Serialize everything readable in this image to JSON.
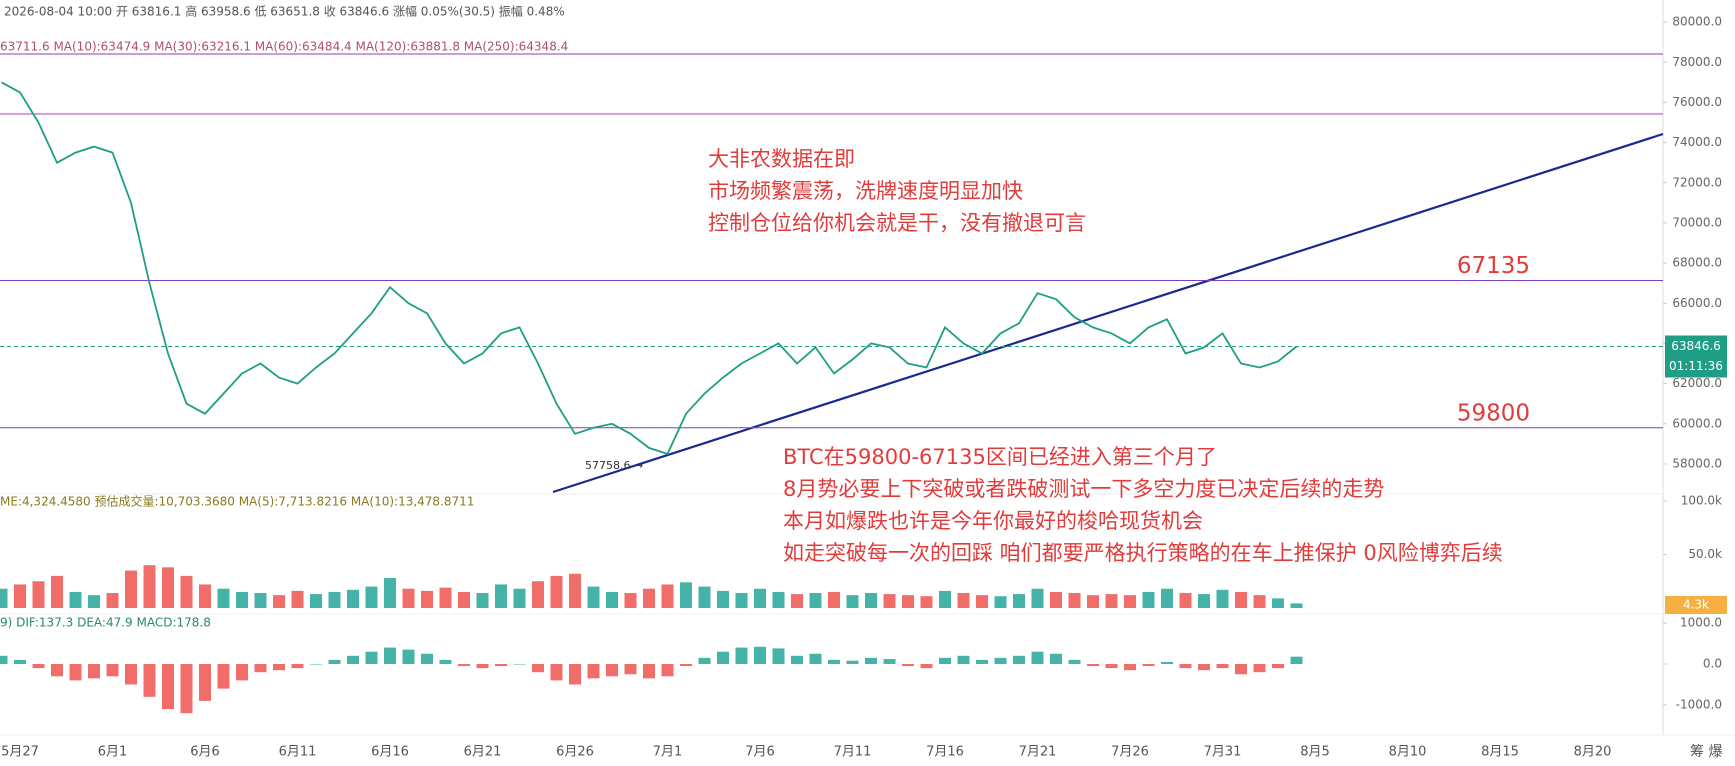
{
  "chart_data": [
    {
      "type": "line",
      "header": "2026-08-04 10:00 开 63816.1 高 63958.6 低 63651.8 收 63846.6 涨幅 0.05%(30.5) 振幅 0.48%",
      "ma_legend": "63711.6  MA(10):63474.9  MA(30):63216.1  MA(60):63484.4  MA(120):63881.8  MA(250):64348.4",
      "categories": [
        null,
        "5月27",
        null,
        null,
        null,
        null,
        "6月1",
        null,
        null,
        null,
        null,
        "6月6",
        null,
        null,
        null,
        null,
        "6月11",
        null,
        null,
        null,
        null,
        "6月16",
        null,
        null,
        null,
        null,
        "6月21",
        null,
        null,
        null,
        null,
        "6月26",
        null,
        null,
        null,
        null,
        "7月1",
        null,
        null,
        null,
        null,
        "7月6",
        null,
        null,
        null,
        null,
        "7月11",
        null,
        null,
        null,
        null,
        "7月16",
        null,
        null,
        null,
        null,
        "7月21",
        null,
        null,
        null,
        null,
        "7月26",
        null,
        null,
        null,
        null,
        "7月31",
        null,
        null,
        null,
        null,
        "8月5",
        null,
        null,
        null,
        null,
        "8月10",
        null,
        null,
        null,
        null,
        "8月15",
        null,
        null,
        null,
        null,
        "8月20",
        null,
        null
      ],
      "values": [
        77000,
        76500,
        75000,
        73000,
        73500,
        73800,
        73500,
        71000,
        67000,
        63500,
        61000,
        60500,
        61500,
        62500,
        63000,
        62300,
        62000,
        62800,
        63500,
        64500,
        65500,
        66800,
        66000,
        65500,
        64000,
        63000,
        63500,
        64500,
        64800,
        63000,
        61000,
        59500,
        59800,
        60000,
        59500,
        58800,
        58500,
        60500,
        61500,
        62300,
        63000,
        63500,
        64000,
        63000,
        63800,
        62500,
        63200,
        64000,
        63800,
        63000,
        62800,
        64800,
        64000,
        63500,
        64500,
        65000,
        66500,
        66200,
        65300,
        64800,
        64500,
        64000,
        64800,
        65200,
        63500,
        63800,
        64500,
        63000,
        62800,
        63100,
        63846.6,
        null,
        null,
        null,
        null,
        null,
        null,
        null,
        null,
        null,
        null,
        null,
        null,
        null,
        null,
        null,
        null,
        null,
        null
      ],
      "color": "#1f9e85",
      "ylim": [
        57000,
        81000
      ],
      "yticks": [
        {
          "value": 58000,
          "label": "58000.0"
        },
        {
          "value": 60000,
          "label": "60000.0"
        },
        {
          "value": 62000,
          "label": "62000.0"
        },
        {
          "value": 64000,
          "label": "64000.0"
        },
        {
          "value": 66000,
          "label": "66000.0"
        },
        {
          "value": 68000,
          "label": "68000.0"
        },
        {
          "value": 70000,
          "label": "70000.0"
        },
        {
          "value": 72000,
          "label": "72000.0"
        },
        {
          "value": 74000,
          "label": "74000.0"
        },
        {
          "value": 76000,
          "label": "76000.0"
        },
        {
          "value": 78000,
          "label": "78000.0"
        },
        {
          "value": 80000,
          "label": "80000.0"
        }
      ],
      "levels": [
        {
          "value": 67135,
          "label": "67135"
        },
        {
          "value": 59800,
          "label": "59800"
        }
      ],
      "last_price": {
        "value": 63846.6,
        "label": "63846.6"
      },
      "countdown": "01:11:36",
      "low_label": "57758.6 →",
      "notes_top": [
        "大非农数据在即",
        "市场频繁震荡，洗牌速度明显加快",
        "控制仓位给你机会就是干，没有撤退可言"
      ],
      "notes_bottom": [
        "BTC在59800-67135区间已经进入第三个月了",
        "8月势必要上下突破或者跌破测试一下多空力度已决定后续的走势",
        "本月如爆跌也许是今年你最好的梭哈现货机会",
        "如走突破每一次的回踩 咱们都要严格执行策略的在车上推保护 0风险博弈后续"
      ]
    },
    {
      "type": "bar",
      "header": "ME:4,324.4580  预估成交量:10,703.3680  MA(5):7,713.8216  MA(10):13,478.8711",
      "values": [
        18000,
        22000,
        25000,
        30000,
        15000,
        12000,
        14000,
        35000,
        40000,
        38000,
        30000,
        22000,
        18000,
        15000,
        14000,
        12000,
        16000,
        13000,
        15000,
        17000,
        20000,
        28000,
        18000,
        16000,
        19000,
        15000,
        14000,
        22000,
        18000,
        25000,
        30000,
        32000,
        20000,
        15000,
        14000,
        18000,
        22000,
        24000,
        20000,
        16000,
        14000,
        18000,
        15000,
        13000,
        14000,
        15000,
        12000,
        14000,
        13000,
        12000,
        11000,
        16000,
        14000,
        12000,
        11000,
        13000,
        18000,
        15000,
        14000,
        12000,
        13000,
        12000,
        15000,
        18000,
        14000,
        13000,
        17000,
        15000,
        12000,
        9000,
        4300,
        null,
        null,
        null,
        null,
        null,
        null,
        null,
        null,
        null,
        null,
        null,
        null,
        null,
        null,
        null,
        null,
        null,
        null
      ],
      "value_labels_last": "4.3k",
      "up_color": "#26a69a",
      "down_color": "#ef5350",
      "ylim": [
        0,
        100000
      ],
      "yticks": [
        {
          "value": 50000,
          "label": "50.0k"
        },
        {
          "value": 100000,
          "label": "100.0k"
        }
      ]
    },
    {
      "type": "bar",
      "header": "9)  DIF:137.3  DEA:47.9  MACD:178.8",
      "values": [
        200,
        100,
        -100,
        -300,
        -400,
        -350,
        -300,
        -500,
        -800,
        -1100,
        -1200,
        -900,
        -600,
        -400,
        -200,
        -150,
        -100,
        0,
        100,
        200,
        300,
        400,
        350,
        250,
        100,
        -50,
        -100,
        -50,
        0,
        -200,
        -400,
        -500,
        -350,
        -300,
        -250,
        -350,
        -300,
        -50,
        150,
        300,
        400,
        420,
        380,
        200,
        250,
        100,
        80,
        150,
        120,
        -50,
        -100,
        150,
        200,
        100,
        150,
        200,
        300,
        250,
        100,
        -50,
        -100,
        -150,
        -50,
        50,
        -100,
        -150,
        -100,
        -250,
        -200,
        -100,
        178.8,
        null,
        null,
        null,
        null,
        null,
        null,
        null,
        null,
        null,
        null,
        null,
        null,
        null,
        null,
        null,
        null,
        null,
        null
      ],
      "up_color": "#26a69a",
      "down_color": "#ef5350",
      "ylim": [
        -1500,
        1250
      ],
      "yticks": [
        {
          "value": -1000,
          "label": "-1000.0"
        },
        {
          "value": 0,
          "label": "0.0"
        },
        {
          "value": 1000,
          "label": "1000.0"
        }
      ]
    }
  ],
  "corner_icons": "筹 爆"
}
